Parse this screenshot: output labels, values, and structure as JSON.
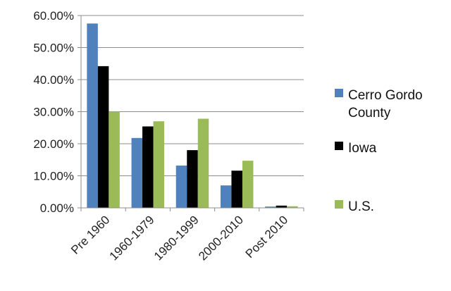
{
  "chart_data": {
    "type": "bar",
    "categories": [
      "Pre 1960",
      "1960-1979",
      "1980-1999",
      "2000-2010",
      "Post 2010"
    ],
    "series": [
      {
        "name": "Cerro Gordo County",
        "values": [
          57.5,
          21.8,
          13.2,
          7.0,
          0.4
        ]
      },
      {
        "name": "Iowa",
        "values": [
          44.2,
          25.4,
          18.0,
          11.6,
          0.7
        ]
      },
      {
        "name": "U.S.",
        "values": [
          30.0,
          27.0,
          27.8,
          14.7,
          0.5
        ]
      }
    ],
    "title": "",
    "xlabel": "",
    "ylabel": "",
    "ylim": [
      0,
      60
    ],
    "yticks": [
      "0.00%",
      "10.00%",
      "20.00%",
      "30.00%",
      "40.00%",
      "50.00%",
      "60.00%"
    ],
    "grid": true,
    "legend_position": "right",
    "colors": [
      "#4F81BD",
      "#000000",
      "#9BBB59"
    ]
  }
}
